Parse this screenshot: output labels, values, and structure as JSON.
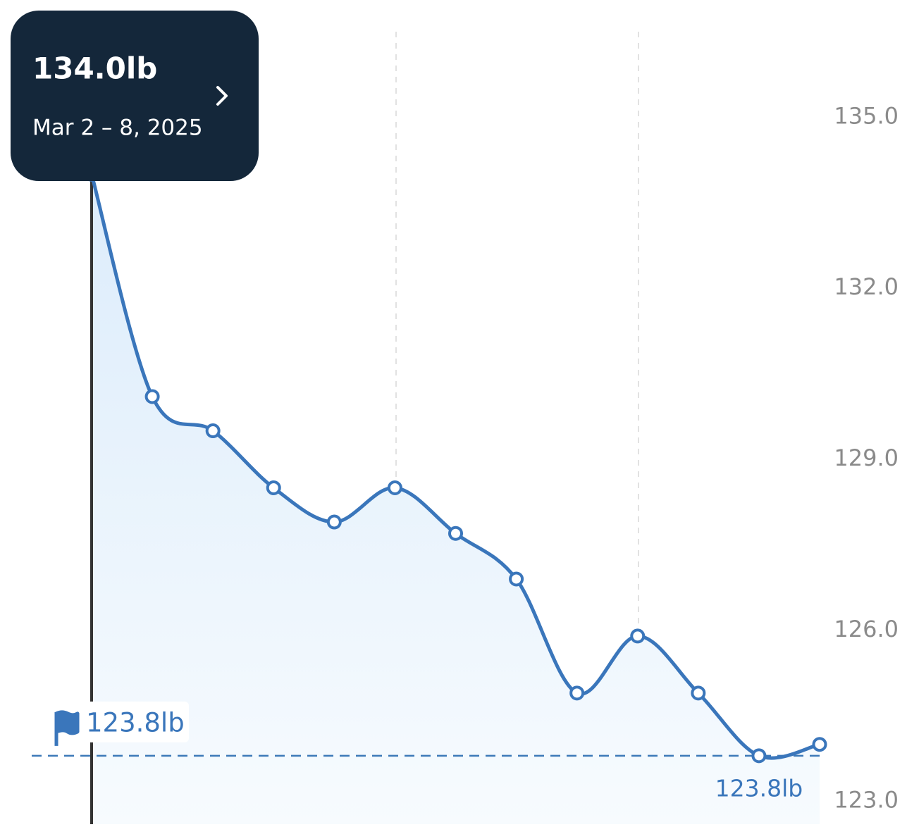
{
  "chart_data": {
    "type": "line",
    "categories": [
      null,
      null,
      null,
      null,
      null,
      null,
      null,
      null,
      null,
      null,
      null,
      null,
      null
    ],
    "series": [
      {
        "name": null,
        "color": "#3a76bb",
        "values": [
          134.0,
          130.1,
          129.5,
          128.5,
          127.9,
          128.5,
          127.7,
          126.9,
          124.9,
          125.9,
          124.9,
          123.8,
          124.0
        ],
        "value_labels": [
          "134.0lb",
          null,
          null,
          null,
          null,
          null,
          null,
          null,
          null,
          null,
          null,
          "123.8lb",
          null
        ]
      }
    ],
    "ylim": [
      122.6,
      136.5
    ],
    "yticks": [
      {
        "value": 123,
        "label": "123.0"
      },
      {
        "value": 126,
        "label": "126.0"
      },
      {
        "value": 129,
        "label": "129.0"
      },
      {
        "value": 132,
        "label": "132.0"
      },
      {
        "value": 135,
        "label": "135.0"
      }
    ],
    "goal": {
      "value": 123.8,
      "label": "123.8lb"
    },
    "tooltip": {
      "index": 0,
      "date": "Mar 2 – 8, 2025"
    }
  }
}
